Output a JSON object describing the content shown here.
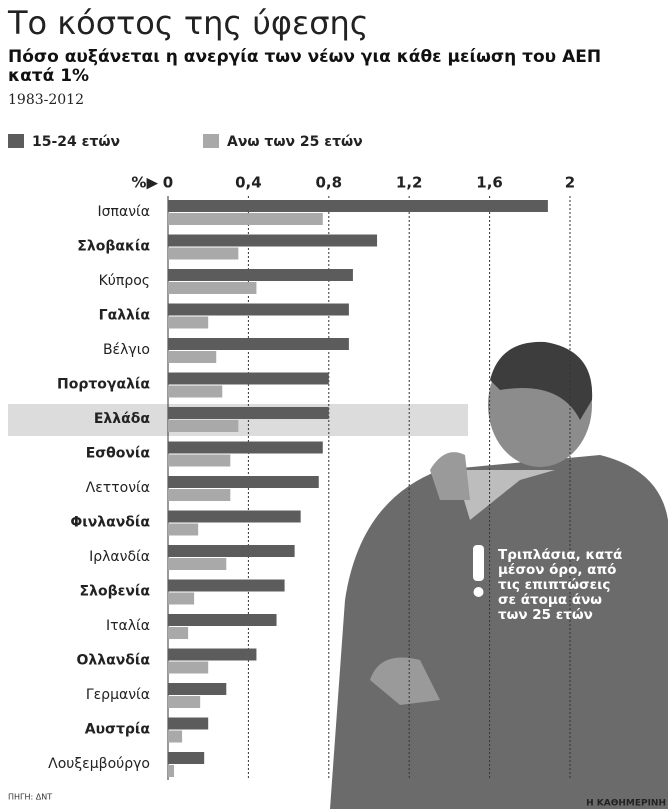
{
  "chart_data": {
    "type": "bar",
    "orientation": "horizontal",
    "title": "Το κόστος της ύφεσης",
    "subtitle": "Πόσο αυξάνεται η ανεργία των νέων για κάθε μείωση του ΑΕΠ κατά 1%",
    "period": "1983-2012",
    "x_axis_label": "%▶",
    "annotation": "Τριπλάσια, κατά μέσον όρο, από τις επιπτώσεις σε άτομα άνω των 25 ετών",
    "source": "ΠΗΓΗ: ΔΝΤ",
    "credit": "Η ΚΑΘΗΜΕΡΙΝΗ",
    "categories": [
      "Ισπανία",
      "Σλοβακία",
      "Κύπρος",
      "Γαλλία",
      "Βέλγιο",
      "Πορτογαλία",
      "Ελλάδα",
      "Εσθονία",
      "Λεττονία",
      "Φινλανδία",
      "Ιρλανδία",
      "Σλοβενία",
      "Ιταλία",
      "Ολλανδία",
      "Γερμανία",
      "Αυστρία",
      "Λουξεμβούργο"
    ],
    "highlight_index": 6,
    "series": [
      {
        "name": "15-24 ετών",
        "color": "#5c5c5c",
        "values": [
          1.89,
          1.04,
          0.92,
          0.9,
          0.9,
          0.8,
          0.8,
          0.77,
          0.75,
          0.66,
          0.63,
          0.58,
          0.54,
          0.44,
          0.29,
          0.2,
          0.18
        ]
      },
      {
        "name": "Ανω των 25 ετών",
        "color": "#a9a9a9",
        "values": [
          0.77,
          0.35,
          0.44,
          0.2,
          0.24,
          0.27,
          0.35,
          0.31,
          0.31,
          0.15,
          0.29,
          0.13,
          0.1,
          0.2,
          0.16,
          0.07,
          0.03
        ]
      }
    ],
    "xlim": [
      0,
      2
    ],
    "xticks": [
      0,
      {
        "value": 0.4,
        "label": "0,4"
      },
      {
        "value": 0.8,
        "label": "0,8"
      },
      {
        "value": 1.2,
        "label": "1,2"
      },
      {
        "value": 1.6,
        "label": "1,6"
      },
      2
    ],
    "grid": true
  }
}
